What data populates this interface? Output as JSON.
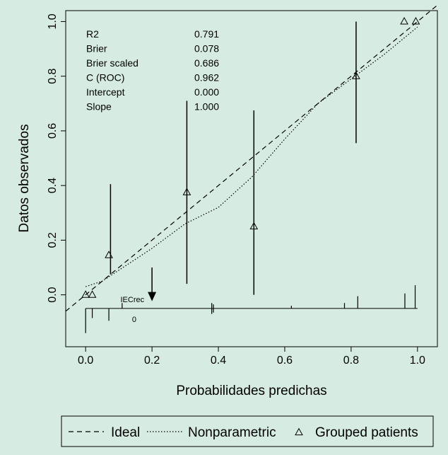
{
  "background": "#d6ece3",
  "chart_data": {
    "type": "scatter",
    "title": "",
    "xlabel": "Probabilidades predichas",
    "ylabel": "Datos observados",
    "xlim": [
      -0.06,
      1.06
    ],
    "ylim": [
      -0.19,
      1.04
    ],
    "x_ticks": [
      0.0,
      0.2,
      0.4,
      0.6,
      0.8,
      1.0
    ],
    "x_tick_labels": [
      "0.0",
      "0.2",
      "0.4",
      "0.6",
      "0.8",
      "1.0"
    ],
    "y_ticks": [
      0.0,
      0.2,
      0.4,
      0.6,
      0.8,
      1.0
    ],
    "y_tick_labels": [
      "0.0",
      "0.2",
      "0.4",
      "0.6",
      "0.8",
      "1.0"
    ],
    "grid": false,
    "stats": [
      {
        "name": "R2",
        "value": "0.791"
      },
      {
        "name": "Brier",
        "value": "0.078"
      },
      {
        "name": "Brier scaled",
        "value": "0.686"
      },
      {
        "name": "C (ROC)",
        "value": "0.962"
      },
      {
        "name": "Intercept",
        "value": "0.000"
      },
      {
        "name": "Slope",
        "value": "1.000"
      }
    ],
    "series": [
      {
        "name": "Ideal",
        "style": "dashed",
        "x": [
          -0.06,
          1.06
        ],
        "y": [
          -0.06,
          1.06
        ]
      },
      {
        "name": "Nonparametric",
        "style": "dotted",
        "x": [
          0.0,
          0.05,
          0.1,
          0.2,
          0.3,
          0.4,
          0.5,
          0.6,
          0.7,
          0.8,
          0.9,
          1.0
        ],
        "y": [
          0.03,
          0.05,
          0.09,
          0.17,
          0.26,
          0.32,
          0.43,
          0.57,
          0.7,
          0.79,
          0.88,
          0.98
        ]
      },
      {
        "name": "Grouped patients",
        "style": "triangles",
        "x": [
          0.0,
          0.02,
          0.07,
          0.305,
          0.507,
          0.815,
          0.96,
          0.995
        ],
        "y": [
          0.0,
          0.0,
          0.145,
          0.375,
          0.25,
          0.8,
          1.0,
          1.0
        ]
      }
    ],
    "error_bars": [
      {
        "x": 0.075,
        "low": 0.075,
        "high": 0.405
      },
      {
        "x": 0.305,
        "low": 0.04,
        "high": 0.71
      },
      {
        "x": 0.507,
        "low": 0.0,
        "high": 0.675
      },
      {
        "x": 0.815,
        "low": 0.555,
        "high": 1.0
      }
    ],
    "rug": {
      "baseline": -0.05,
      "label": "IECrec",
      "label_x": 0.105,
      "zero_label": "0",
      "zero_label_x": 0.14,
      "arrow_x": 0.2,
      "up_ticks": [
        {
          "x": 0.11,
          "h": 0.02
        },
        {
          "x": 0.38,
          "h": 0.02
        },
        {
          "x": 0.385,
          "h": 0.015
        },
        {
          "x": 0.62,
          "h": 0.01
        },
        {
          "x": 0.78,
          "h": 0.02
        },
        {
          "x": 0.82,
          "h": 0.045
        },
        {
          "x": 0.962,
          "h": 0.055
        },
        {
          "x": 0.993,
          "h": 0.085
        }
      ],
      "down_ticks": [
        {
          "x": 0.0,
          "h": 0.09
        },
        {
          "x": 0.02,
          "h": 0.035
        },
        {
          "x": 0.07,
          "h": 0.045
        },
        {
          "x": 0.38,
          "h": 0.02
        },
        {
          "x": 0.385,
          "h": 0.015
        }
      ]
    },
    "legend": {
      "placement": "bottom",
      "items": [
        {
          "label": "Ideal",
          "style": "dashed"
        },
        {
          "label": "Nonparametric",
          "style": "dotted"
        },
        {
          "label": "Grouped patients",
          "style": "triangle"
        }
      ]
    }
  }
}
